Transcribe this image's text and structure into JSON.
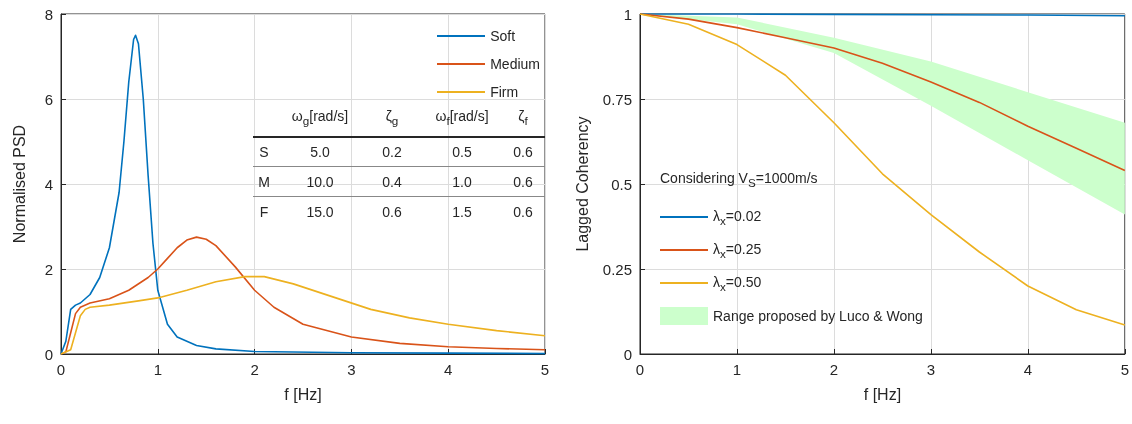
{
  "chart_data": [
    {
      "type": "line",
      "xlabel": "f [Hz]",
      "ylabel": "Normalised PSD",
      "xlim": [
        0,
        5
      ],
      "xticks": [
        0,
        1,
        2,
        3,
        4,
        5
      ],
      "ylim": [
        0,
        8
      ],
      "yticks": [
        0,
        2,
        4,
        6,
        8
      ],
      "grid": true,
      "legend": "top right",
      "annotations": [
        "ω$_{g}$[rad/s]",
        "ζ$_{g}$",
        "ω$_{f}$[rad/s]",
        "ζ$_{f}$",
        "S",
        "5.0",
        "0.2",
        "0.5",
        "0.6",
        "M",
        "10.0",
        "0.4",
        "1.0",
        "0.6",
        "F",
        "15.0",
        "0.6",
        "1.5",
        "0.6"
      ],
      "series": [
        {
          "name": "Soft",
          "color": "#0072bd",
          "x": [
            0,
            0.05,
            0.1,
            0.15,
            0.2,
            0.3,
            0.4,
            0.5,
            0.6,
            0.65,
            0.7,
            0.75,
            0.77,
            0.8,
            0.85,
            0.9,
            0.95,
            1.0,
            1.1,
            1.2,
            1.4,
            1.6,
            2,
            3,
            4,
            5
          ],
          "values": [
            0,
            0.3,
            1.05,
            1.15,
            1.2,
            1.4,
            1.8,
            2.5,
            3.8,
            5,
            6.4,
            7.4,
            7.5,
            7.3,
            6.0,
            4.2,
            2.6,
            1.5,
            0.7,
            0.4,
            0.2,
            0.12,
            0.06,
            0.03,
            0.02,
            0.01
          ]
        },
        {
          "name": "Medium",
          "color": "#d95319",
          "x": [
            0,
            0.05,
            0.1,
            0.15,
            0.2,
            0.3,
            0.5,
            0.7,
            0.9,
            1.0,
            1.1,
            1.2,
            1.3,
            1.4,
            1.5,
            1.6,
            1.8,
            2.0,
            2.2,
            2.5,
            3,
            3.5,
            4,
            4.5,
            5
          ],
          "values": [
            0,
            0.05,
            0.5,
            0.95,
            1.1,
            1.2,
            1.3,
            1.5,
            1.8,
            2.0,
            2.25,
            2.5,
            2.68,
            2.75,
            2.7,
            2.55,
            2.05,
            1.5,
            1.1,
            0.7,
            0.4,
            0.25,
            0.17,
            0.13,
            0.1
          ]
        },
        {
          "name": "Firm",
          "color": "#edb120",
          "x": [
            0,
            0.1,
            0.15,
            0.2,
            0.25,
            0.3,
            0.5,
            0.8,
            1.0,
            1.3,
            1.6,
            1.9,
            2.1,
            2.4,
            2.8,
            3.2,
            3.6,
            4,
            4.5,
            5
          ],
          "values": [
            0,
            0.1,
            0.5,
            0.9,
            1.05,
            1.1,
            1.15,
            1.25,
            1.32,
            1.5,
            1.7,
            1.82,
            1.82,
            1.65,
            1.35,
            1.05,
            0.85,
            0.7,
            0.55,
            0.43
          ]
        }
      ]
    },
    {
      "type": "line",
      "xlabel": "f [Hz]",
      "ylabel": "Lagged Coherency",
      "xlim": [
        0,
        5
      ],
      "xticks": [
        0,
        1,
        2,
        3,
        4,
        5
      ],
      "ylim": [
        0,
        1
      ],
      "yticks": [
        0,
        0.25,
        0.5,
        0.75,
        1
      ],
      "grid": true,
      "legend": "bottom left",
      "legend_title": "Considering V$_{S}$=1000m/s",
      "series": [
        {
          "name": "λ$_{x}$=0.02",
          "color": "#0072bd",
          "x": [
            0,
            1,
            2,
            3,
            4,
            5
          ],
          "values": [
            1,
            1,
            0.999,
            0.998,
            0.997,
            0.995
          ]
        },
        {
          "name": "λ$_{x}$=0.25",
          "color": "#d95319",
          "x": [
            0,
            0.5,
            1,
            1.5,
            2,
            2.5,
            3,
            3.5,
            4,
            4.5,
            5
          ],
          "values": [
            1,
            0.985,
            0.96,
            0.93,
            0.9,
            0.855,
            0.8,
            0.74,
            0.67,
            0.605,
            0.54
          ]
        },
        {
          "name": "λ$_{x}$=0.50",
          "color": "#edb120",
          "x": [
            0,
            0.5,
            1,
            1.5,
            2,
            2.5,
            3,
            3.5,
            4,
            4.5,
            5
          ],
          "values": [
            1,
            0.97,
            0.91,
            0.82,
            0.68,
            0.53,
            0.41,
            0.3,
            0.2,
            0.13,
            0.085
          ]
        },
        {
          "name": "Range proposed by Luco & Wong",
          "type": "area",
          "color": "#ccffcc",
          "x": [
            0,
            1,
            2,
            3,
            4,
            5
          ],
          "values": [
            null,
            null,
            null,
            null,
            null,
            null
          ],
          "lower": [
            1,
            0.97,
            0.885,
            0.73,
            0.57,
            0.41
          ],
          "upper": [
            1,
            0.99,
            0.93,
            0.86,
            0.77,
            0.68
          ]
        }
      ]
    }
  ]
}
